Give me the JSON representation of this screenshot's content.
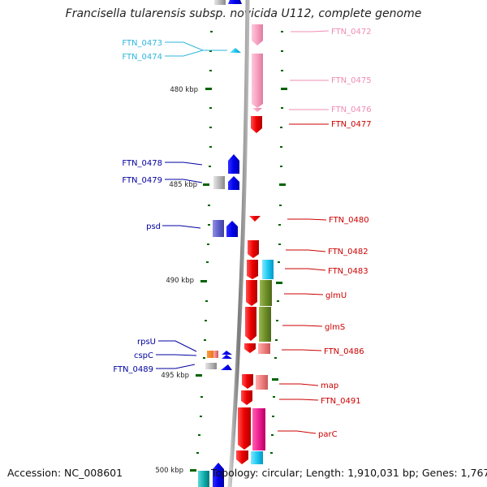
{
  "title": "Francisella tularensis subsp. novicida U112, complete genome",
  "footer": {
    "accession": "Accession: NC_008601",
    "topology": "Topology: circular; Length: 1,910,031 bp; Genes: 1,767"
  },
  "ruler": [
    "480 kbp",
    "485 kbp",
    "490 kbp",
    "495 kbp",
    "500 kbp"
  ],
  "labels_left": [
    {
      "text": "FTN_0473",
      "color": "#2eb6dc"
    },
    {
      "text": "FTN_0474",
      "color": "#2eb6dc"
    },
    {
      "text": "FTN_0478",
      "color": "#0000a0"
    },
    {
      "text": "FTN_0479",
      "color": "#0000a0"
    },
    {
      "text": "psd",
      "color": "#0000a0"
    },
    {
      "text": "rpsU",
      "color": "#0000a0"
    },
    {
      "text": "cspC",
      "color": "#0000a0"
    },
    {
      "text": "FTN_0489",
      "color": "#0000a0"
    }
  ],
  "labels_right": [
    {
      "text": "FTN_0472",
      "color": "#f08cb4"
    },
    {
      "text": "FTN_0475",
      "color": "#f08cb4"
    },
    {
      "text": "FTN_0476",
      "color": "#f08cb4"
    },
    {
      "text": "FTN_0477",
      "color": "#cc0000"
    },
    {
      "text": "FTN_0480",
      "color": "#cc0000"
    },
    {
      "text": "FTN_0482",
      "color": "#cc0000"
    },
    {
      "text": "FTN_0483",
      "color": "#cc0000"
    },
    {
      "text": "glmU",
      "color": "#cc0000"
    },
    {
      "text": "glmS",
      "color": "#cc0000"
    },
    {
      "text": "FTN_0486",
      "color": "#cc0000"
    },
    {
      "text": "map",
      "color": "#cc0000"
    },
    {
      "text": "FTN_0491",
      "color": "#cc0000"
    },
    {
      "text": "parC",
      "color": "#cc0000"
    }
  ]
}
